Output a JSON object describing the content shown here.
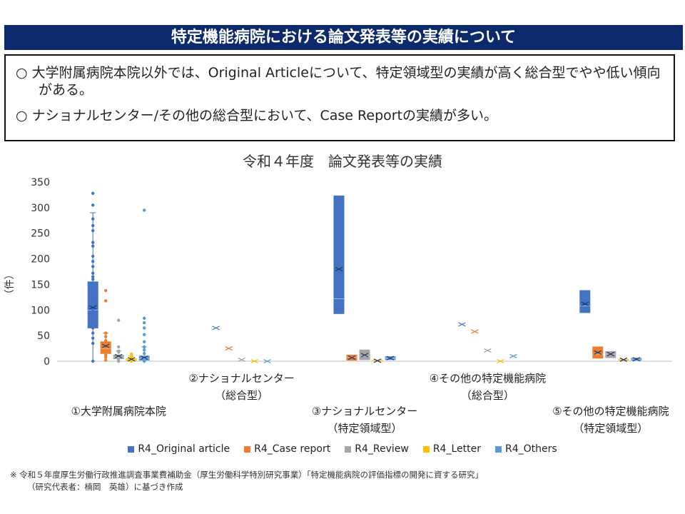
{
  "page": {
    "title": "特定機能病院における論文発表等の実績について",
    "bullets": [
      "○ 大学附属病院本院以外では、Original Articleについて、特定領域型の実績が高く総合型でやや低い傾向がある。",
      "○ ナショナルセンター/その他の総合型において、Case Reportの実績が多い。"
    ],
    "footnote_line1": "※ 令和５年度厚生労働行政推進調査事業費補助金（厚生労働科学特別研究事業）「特定機能病院の評価指標の開発に資する研究」",
    "footnote_line2": "（研究代表者：楠岡　英雄）に基づき作成"
  },
  "chart_data": {
    "type": "box",
    "title": "令和４年度　論文発表等の実績",
    "ylabel": "（件）",
    "ylim": [
      0,
      350
    ],
    "yticks": [
      0,
      50,
      100,
      150,
      200,
      250,
      300,
      350
    ],
    "grid": false,
    "legend_position": "bottom",
    "groups": [
      {
        "label_lines": [
          "①大学附属病院本院"
        ]
      },
      {
        "label_lines": [
          "②ナショナルセンター",
          "（総合型）"
        ]
      },
      {
        "label_lines": [
          "③ナショナルセンター",
          "（特定領域型）"
        ]
      },
      {
        "label_lines": [
          "④その他の特定機能病院",
          "（総合型）"
        ]
      },
      {
        "label_lines": [
          "⑤その他の特定機能病院",
          "（特定領域型）"
        ]
      }
    ],
    "series": [
      {
        "name": "R4_Original article",
        "color": "#4472c4",
        "boxes": [
          {
            "min": 0,
            "q1": 65,
            "median": 100,
            "q3": 155,
            "max": 290,
            "mean": 105,
            "points": [
              0,
              35,
              45,
              55,
              65,
              75,
              85,
              92,
              100,
              108,
              115,
              122,
              130,
              138,
              145,
              152,
              160,
              165,
              172,
              185,
              195,
              205,
              225,
              232,
              255,
              265,
              278,
              305,
              328
            ]
          },
          {
            "min": 65,
            "q1": 65,
            "median": 65,
            "q3": 65,
            "max": 65,
            "mean": 65,
            "points": []
          },
          {
            "min": 93,
            "q1": 93,
            "median": 122,
            "q3": 323,
            "max": 323,
            "mean": 180,
            "points": []
          },
          {
            "min": 72,
            "q1": 72,
            "median": 72,
            "q3": 72,
            "max": 72,
            "mean": 72,
            "points": []
          },
          {
            "min": 95,
            "q1": 95,
            "median": 108,
            "q3": 138,
            "max": 138,
            "mean": 112,
            "points": []
          }
        ]
      },
      {
        "name": "R4_Case report",
        "color": "#ed7d31",
        "boxes": [
          {
            "min": 2,
            "q1": 15,
            "median": 25,
            "q3": 38,
            "max": 55,
            "mean": 30,
            "points": [
              2,
              8,
              12,
              18,
              28,
              40,
              48,
              55,
              118,
              138
            ]
          },
          {
            "min": 25,
            "q1": 25,
            "median": 25,
            "q3": 25,
            "max": 25,
            "mean": 25,
            "points": []
          },
          {
            "min": 2,
            "q1": 2,
            "median": 8,
            "q3": 12,
            "max": 12,
            "mean": 7,
            "points": []
          },
          {
            "min": 58,
            "q1": 58,
            "median": 58,
            "q3": 58,
            "max": 58,
            "mean": 58,
            "points": []
          },
          {
            "min": 6,
            "q1": 6,
            "median": 14,
            "q3": 28,
            "max": 28,
            "mean": 17,
            "points": []
          }
        ]
      },
      {
        "name": "R4_Review",
        "color": "#a5a5a5",
        "boxes": [
          {
            "min": 0,
            "q1": 5,
            "median": 8,
            "q3": 12,
            "max": 20,
            "mean": 10,
            "points": [
              0,
              3,
              18,
              20,
              28,
              80
            ]
          },
          {
            "min": 3,
            "q1": 3,
            "median": 3,
            "q3": 3,
            "max": 3,
            "mean": 3,
            "points": []
          },
          {
            "min": 3,
            "q1": 3,
            "median": 10,
            "q3": 22,
            "max": 22,
            "mean": 12,
            "points": []
          },
          {
            "min": 21,
            "q1": 21,
            "median": 21,
            "q3": 21,
            "max": 21,
            "mean": 21,
            "points": []
          },
          {
            "min": 7,
            "q1": 7,
            "median": 14,
            "q3": 19,
            "max": 19,
            "mean": 14,
            "points": []
          }
        ]
      },
      {
        "name": "R4_Letter",
        "color": "#ffc000",
        "boxes": [
          {
            "min": 0,
            "q1": 1,
            "median": 3,
            "q3": 5,
            "max": 10,
            "mean": 4,
            "points": [
              0,
              8,
              14
            ]
          },
          {
            "min": 0,
            "q1": 0,
            "median": 0,
            "q3": 0,
            "max": 0,
            "mean": 0,
            "points": []
          },
          {
            "min": 0,
            "q1": 0,
            "median": 1,
            "q3": 2,
            "max": 2,
            "mean": 1,
            "points": []
          },
          {
            "min": 0,
            "q1": 0,
            "median": 0,
            "q3": 0,
            "max": 0,
            "mean": 0,
            "points": []
          },
          {
            "min": 2,
            "q1": 2,
            "median": 3,
            "q3": 4,
            "max": 4,
            "mean": 3,
            "points": []
          }
        ]
      },
      {
        "name": "R4_Others",
        "color": "#5b9bd5",
        "boxes": [
          {
            "min": 0,
            "q1": 2,
            "median": 5,
            "q3": 10,
            "max": 28,
            "mean": 7,
            "points": [
              0,
              15,
              22,
              28,
              38,
              52,
              65,
              75,
              84,
              295
            ]
          },
          {
            "min": 0,
            "q1": 0,
            "median": 0,
            "q3": 0,
            "max": 0,
            "mean": 0,
            "points": []
          },
          {
            "min": 3,
            "q1": 3,
            "median": 6,
            "q3": 9,
            "max": 9,
            "mean": 6,
            "points": []
          },
          {
            "min": 10,
            "q1": 10,
            "median": 10,
            "q3": 10,
            "max": 10,
            "mean": 10,
            "points": []
          },
          {
            "min": 2,
            "q1": 2,
            "median": 4,
            "q3": 6,
            "max": 6,
            "mean": 4,
            "points": []
          }
        ]
      }
    ]
  }
}
